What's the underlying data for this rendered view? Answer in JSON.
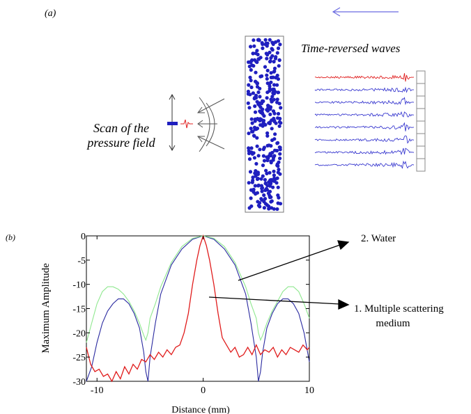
{
  "panel_a": {
    "label": "(a)",
    "time_reversed_label": "Time-reversed waves",
    "scan_label_line1": "Scan of the",
    "scan_label_line2": "pressure field",
    "colors": {
      "scatterers": "#1f1fbf",
      "signal_red": "#e02020",
      "signal_blue": "#3b3bd0",
      "arrow_blue": "#6a6ae0"
    }
  },
  "panel_b": {
    "label": "(b)",
    "annotation_water": "2. Water",
    "annotation_ms_line1": "1. Multiple scattering",
    "annotation_ms_line2": "medium"
  },
  "chart_data": {
    "type": "line",
    "xlabel": "Distance (mm)",
    "ylabel": "Maximum Amplitude",
    "xlim": [
      -11,
      10
    ],
    "ylim": [
      -30,
      0
    ],
    "xticks": [
      "-10",
      "0",
      "10"
    ],
    "yticks": [
      "0",
      "-5",
      "-10",
      "-15",
      "-20",
      "-25",
      "-30"
    ],
    "series": [
      {
        "color": "#2a2aa0",
        "x": [
          -11,
          -10.5,
          -10,
          -9.5,
          -9,
          -8.5,
          -8,
          -7.5,
          -7,
          -6.5,
          -6,
          -5.6,
          -5.4,
          -5.2,
          -5,
          -4.5,
          -4,
          -3,
          -2,
          -1,
          0,
          1,
          2,
          3,
          4,
          4.5,
          5,
          5.2,
          5.4,
          5.6,
          6,
          6.5,
          7,
          7.5,
          8,
          8.5,
          9,
          9.5,
          10
        ],
        "y": [
          -30,
          -27,
          -22,
          -18,
          -15.5,
          -14,
          -13,
          -13,
          -14,
          -16,
          -19,
          -24,
          -28,
          -30,
          -25,
          -18,
          -12,
          -6,
          -2.7,
          -0.7,
          0,
          -0.7,
          -2.7,
          -6,
          -12,
          -18,
          -25,
          -30,
          -28,
          -24,
          -19,
          -16,
          -14,
          -13,
          -13,
          -14,
          -16,
          -20,
          -26
        ]
      },
      {
        "color": "#8fe88f",
        "x": [
          -11,
          -10.5,
          -10,
          -9.5,
          -9,
          -8.5,
          -8,
          -7.5,
          -7,
          -6.5,
          -6,
          -5.6,
          -5.4,
          -5.2,
          -5,
          -4.5,
          -4,
          -3,
          -2,
          -1,
          0,
          1,
          2,
          3,
          4,
          4.5,
          5,
          5.2,
          5.4,
          5.6,
          6,
          6.5,
          7,
          7.5,
          8,
          8.5,
          9,
          9.5,
          10
        ],
        "y": [
          -22,
          -18,
          -14,
          -11.5,
          -10.5,
          -10.5,
          -11,
          -12,
          -13.5,
          -15.5,
          -18,
          -20.5,
          -21.5,
          -20,
          -17,
          -14,
          -10.5,
          -5.5,
          -2.2,
          -0.5,
          0,
          -0.5,
          -2.2,
          -5.5,
          -10.5,
          -14,
          -17,
          -20,
          -21.5,
          -20.5,
          -18,
          -15.5,
          -13.5,
          -11.5,
          -10.5,
          -10.5,
          -11.5,
          -14,
          -17
        ]
      },
      {
        "color": "#e01b1b",
        "x": [
          -11,
          -10.6,
          -10.2,
          -9.8,
          -9.4,
          -9,
          -8.6,
          -8.2,
          -7.8,
          -7.4,
          -7,
          -6.6,
          -6.2,
          -5.8,
          -5.4,
          -5,
          -4.6,
          -4.2,
          -3.8,
          -3.4,
          -3,
          -2.6,
          -2.2,
          -1.8,
          -1.4,
          -1,
          -0.6,
          -0.3,
          0,
          0.3,
          0.6,
          1,
          1.4,
          1.8,
          2.2,
          2.6,
          3,
          3.4,
          3.8,
          4.2,
          4.6,
          5,
          5.4,
          5.8,
          6.2,
          6.6,
          7,
          7.4,
          7.8,
          8.2,
          8.6,
          9,
          9.4,
          9.8,
          10
        ],
        "y": [
          -23,
          -26.5,
          -28,
          -27.5,
          -29,
          -28.5,
          -30,
          -28,
          -29.5,
          -27,
          -28.5,
          -26.5,
          -27.5,
          -25.5,
          -26,
          -24.5,
          -25.5,
          -24,
          -25,
          -23.5,
          -24.5,
          -23,
          -22.5,
          -20,
          -16,
          -10,
          -5,
          -2,
          0,
          -2,
          -5,
          -10,
          -16,
          -21,
          -22.5,
          -24,
          -23,
          -25,
          -24.5,
          -23,
          -24.5,
          -22.5,
          -24.5,
          -23.5,
          -24,
          -23,
          -25,
          -23.5,
          -24.5,
          -23,
          -23.5,
          -24,
          -22.5,
          -23.5,
          -23
        ]
      }
    ]
  }
}
